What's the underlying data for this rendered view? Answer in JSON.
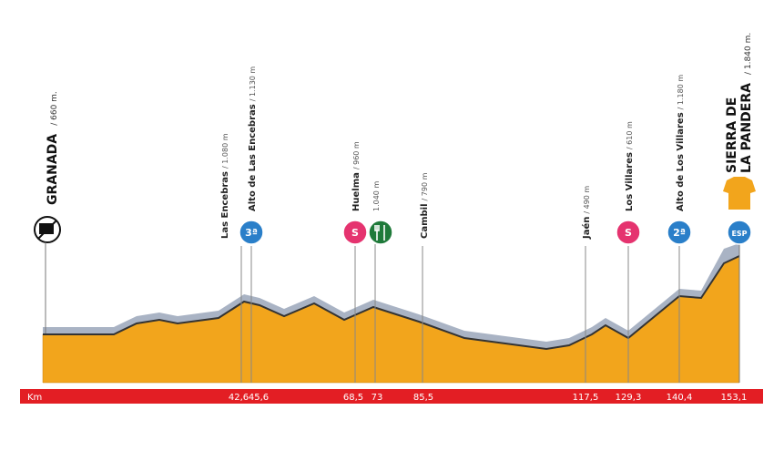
{
  "start": {
    "name": "GRANADA",
    "altitude": "/ 660 m."
  },
  "finish": {
    "name_lines": [
      "SIERRA DE",
      "LA PANDERA"
    ],
    "altitude": "/ 1.840 m.",
    "km": "153,1",
    "badge": "ESP"
  },
  "axis_label": "Km",
  "points": [
    {
      "name": "Las Encebras",
      "altitude": "/ 1.080 m",
      "km": "42,6"
    },
    {
      "name": "Alto de Las Encebras",
      "altitude": "/ 1.130 m",
      "km": "45,6",
      "badge": "3ª"
    },
    {
      "name": "Huelma",
      "altitude": "/ 960 m",
      "km": "68,5",
      "badge": "S"
    },
    {
      "altitude": "1.040 m",
      "km": "73"
    },
    {
      "name": "Cambil",
      "altitude": "/ 790 m",
      "km": "85,5"
    },
    {
      "name": "Jaén",
      "altitude": "/ 490 m",
      "km": "117,5"
    },
    {
      "name": "Los Villares",
      "altitude": "/ 610 m",
      "km": "129,3",
      "badge": "S"
    },
    {
      "name": "Alto de Los Villares",
      "altitude": "/ 1.180 m",
      "km": "140,4",
      "badge": "2ª"
    }
  ]
}
